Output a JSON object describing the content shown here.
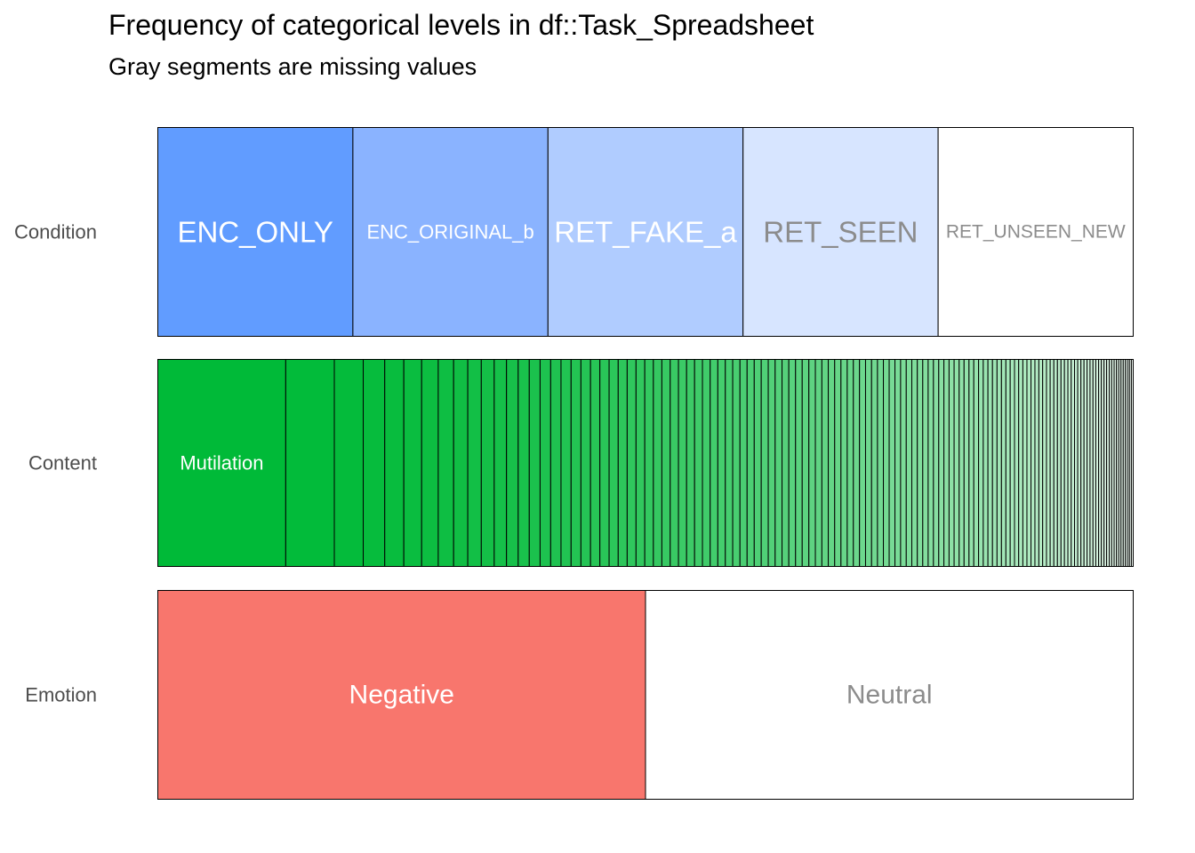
{
  "chart_data": {
    "type": "bar",
    "orientation": "horizontal-stacked-proportion",
    "title": "Frequency of categorical levels in df::Task_Spreadsheet",
    "subtitle": "Gray segments are missing values",
    "bars": [
      {
        "variable": "Condition",
        "levels": [
          {
            "label": "ENC_ONLY",
            "proportion": 0.2,
            "color": "#619CFF",
            "text_color": "#FFFFFF",
            "shown": true
          },
          {
            "label": "ENC_ORIGINAL_b",
            "proportion": 0.2,
            "color": "#8AB3FF",
            "text_color": "#FFFFFF",
            "shown": true
          },
          {
            "label": "RET_FAKE_a",
            "proportion": 0.2,
            "color": "#B0CCFF",
            "text_color": "#FFFFFF",
            "shown": true
          },
          {
            "label": "RET_SEEN",
            "proportion": 0.2,
            "color": "#D7E5FF",
            "text_color": "#8C8C8C",
            "shown": true
          },
          {
            "label": "RET_UNSEEN_NEW",
            "proportion": 0.2,
            "color": "#FFFFFF",
            "text_color": "#8C8C8C",
            "shown": true
          }
        ]
      },
      {
        "variable": "Content",
        "levels": [
          {
            "label": "Mutilation",
            "proportion": 0.104,
            "color": "#00BA38",
            "text_color": "#FFFFFF",
            "shown": true
          }
        ],
        "other_level_count": 124,
        "other_level_proportions": [
          0.0395,
          0.0235,
          0.0175,
          0.0155,
          0.0145,
          0.0135,
          0.0125,
          0.0115,
          0.011,
          0.0105,
          0.01,
          0.0095,
          0.009,
          0.0088,
          0.0086,
          0.0084,
          0.0082,
          0.008,
          0.0078,
          0.0076,
          0.0075,
          0.0074,
          0.0073,
          0.0072,
          0.0071,
          0.007,
          0.0069,
          0.0068,
          0.0067,
          0.0066,
          0.0065,
          0.0064,
          0.0063,
          0.0062,
          0.0061,
          0.006,
          0.0059,
          0.0058,
          0.0058,
          0.0057,
          0.0057,
          0.0056,
          0.0056,
          0.0055,
          0.0055,
          0.0054,
          0.0054,
          0.0053,
          0.0053,
          0.0052,
          0.0052,
          0.0051,
          0.0051,
          0.005,
          0.005,
          0.0049,
          0.0049,
          0.0048,
          0.0048,
          0.0047,
          0.0047,
          0.0046,
          0.0046,
          0.0045,
          0.0045,
          0.0044,
          0.0044,
          0.0043,
          0.0043,
          0.0042,
          0.0042,
          0.0041,
          0.0041,
          0.004,
          0.004,
          0.0039,
          0.0039,
          0.0038,
          0.0038,
          0.0037,
          0.0037,
          0.0036,
          0.0036,
          0.0035,
          0.0035,
          0.0034,
          0.0034,
          0.0033,
          0.0033,
          0.0032,
          0.0032,
          0.0031,
          0.0031,
          0.003,
          0.003,
          0.0029,
          0.0029,
          0.0028,
          0.0028,
          0.0027,
          0.0027,
          0.0026,
          0.0026,
          0.0025,
          0.0025,
          0.0024,
          0.0024,
          0.0023,
          0.0023,
          0.0022,
          0.0022,
          0.0021,
          0.0021,
          0.002,
          0.002,
          0.0019,
          0.0019,
          0.0018,
          0.0018,
          0.0017,
          0.0017,
          0.0016,
          0.0016,
          0.0015
        ],
        "color_start": "#00BA38",
        "color_end": "#FFFFFF"
      },
      {
        "variable": "Emotion",
        "levels": [
          {
            "label": "Negative",
            "proportion": 0.5,
            "color": "#F8766D",
            "text_color": "#FFFFFF",
            "shown": true
          },
          {
            "label": "Neutral",
            "proportion": 0.5,
            "color": "#FFFFFF",
            "text_color": "#8C8C8C",
            "shown": true
          }
        ]
      }
    ],
    "xlim": [
      0,
      1
    ],
    "grid": false,
    "legend": "none"
  }
}
